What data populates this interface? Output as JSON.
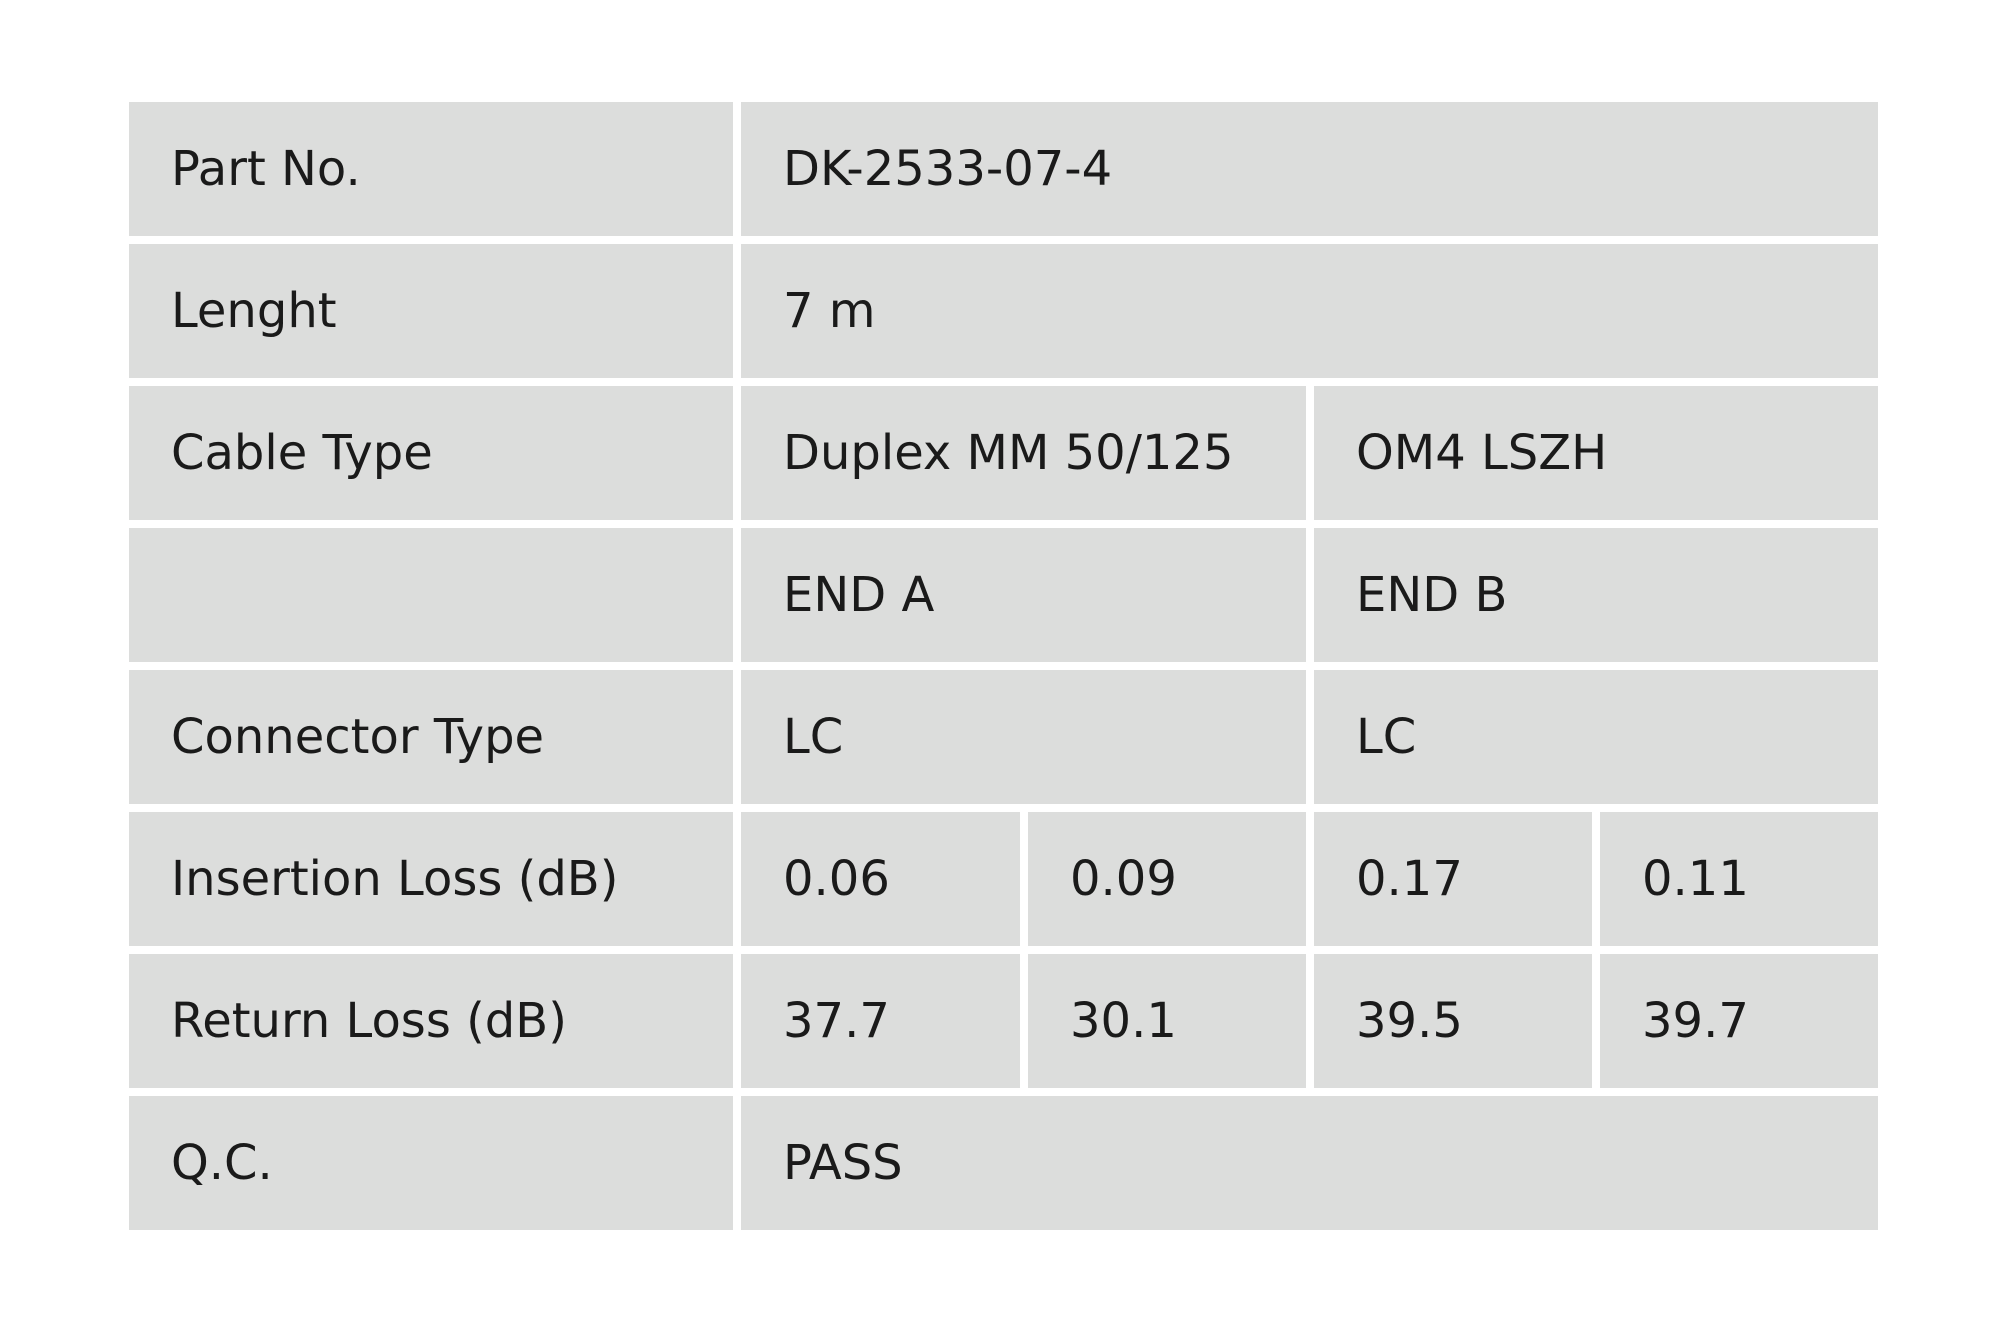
{
  "table": {
    "rows": [
      {
        "label": "Part No.",
        "cells": [
          "DK-2533-07-4"
        ]
      },
      {
        "label": "Lenght",
        "cells": [
          "7 m"
        ]
      },
      {
        "label": "Cable Type",
        "cells": [
          "Duplex MM 50/125",
          "OM4 LSZH"
        ]
      },
      {
        "label": null,
        "cells": [
          "END A",
          "END B"
        ]
      },
      {
        "label": "Connector Type",
        "cells": [
          "LC",
          "LC"
        ]
      },
      {
        "label": "Insertion Loss (dB)",
        "cells": [
          "0.06",
          "0.09",
          "0.17",
          "0.11"
        ]
      },
      {
        "label": "Return Loss (dB)",
        "cells": [
          "37.7",
          "30.1",
          "39.5",
          "39.7"
        ]
      },
      {
        "label": "Q.C.",
        "cells": [
          "PASS"
        ]
      }
    ]
  }
}
